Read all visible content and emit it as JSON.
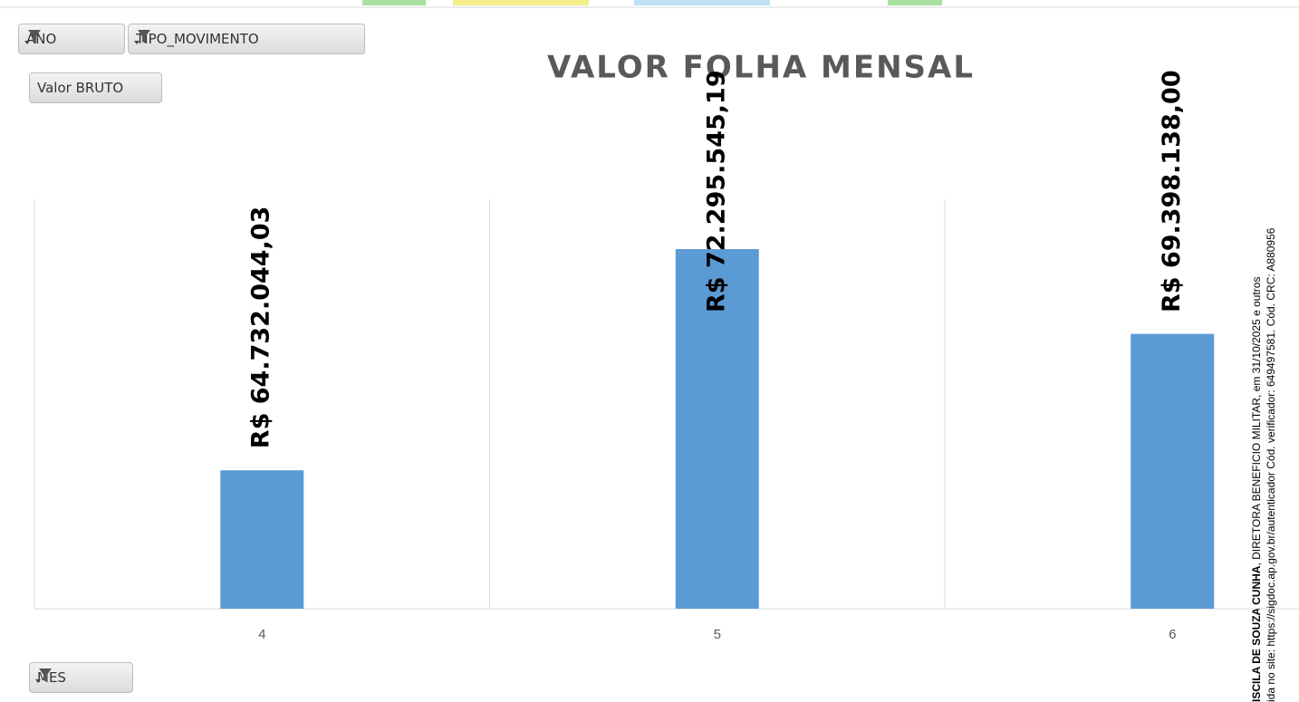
{
  "filters": [
    "ANO",
    "TIPO_MOVIMENTO"
  ],
  "value_field": "Valor BRUTO",
  "axis_field": "MES",
  "chart_data": {
    "type": "bar",
    "title": "VALOR FOLHA MENSAL",
    "categories": [
      "4",
      "5",
      "6"
    ],
    "values": [
      64732044.03,
      72295545.19,
      69398138.0
    ],
    "value_labels": [
      "R$ 64.732.044,03",
      "R$ 72.295.545,19",
      "R$ 69.398.138,00"
    ],
    "color": "#5b9bd5",
    "ylim": [
      60000000,
      74000000
    ],
    "grid": true
  },
  "watermark": {
    "signer": "ISCILA DE SOUZA CUNHA",
    "line1": ", DIRETORA BENEFICIO MILITAR, em 31/10/2025 e outros",
    "line2": "ida no site: https://sigdoc.ap.gov.br/autenticador Cód. verificador: 649497581. Cód. CRC: A880956"
  }
}
